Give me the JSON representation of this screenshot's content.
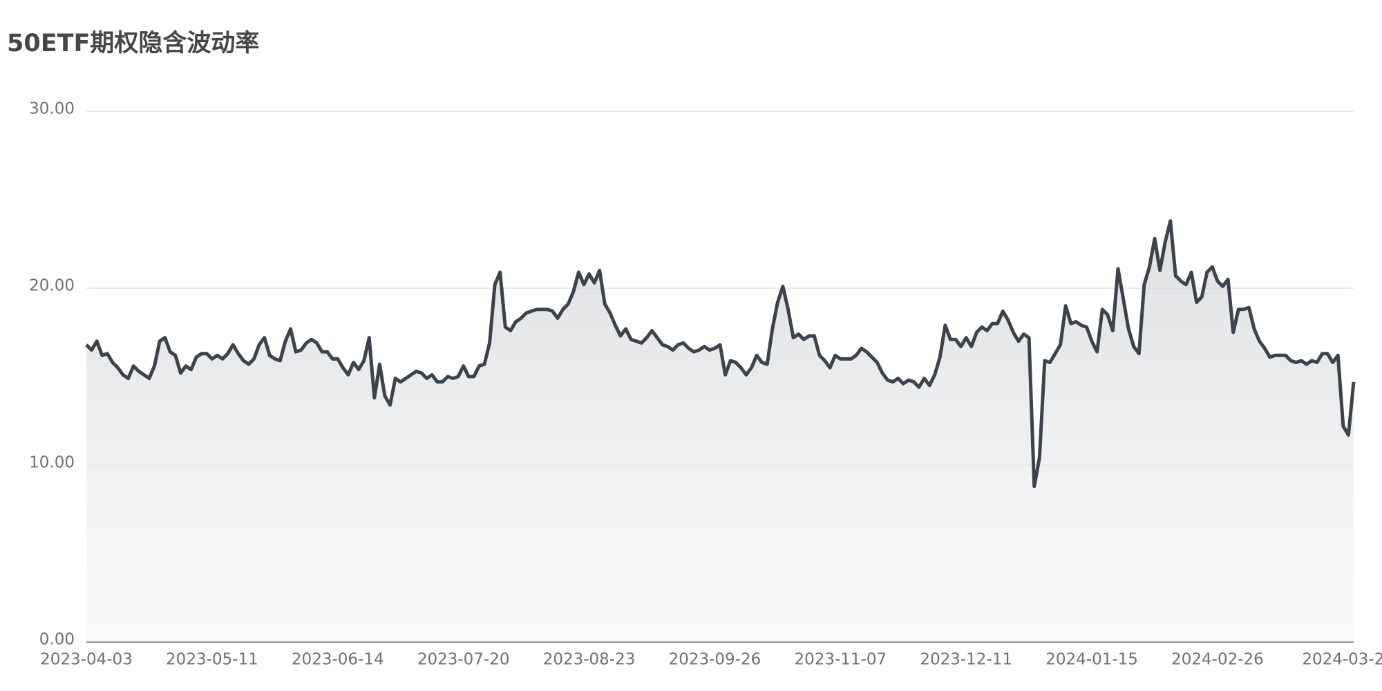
{
  "chart_data": {
    "type": "area",
    "title": "50ETF期权隐含波动率",
    "categories": [
      "2023-04-03",
      null,
      null,
      null,
      null,
      null,
      null,
      null,
      null,
      null,
      null,
      null,
      null,
      null,
      null,
      null,
      null,
      null,
      null,
      null,
      null,
      null,
      null,
      null,
      "2023-05-11",
      null,
      null,
      null,
      null,
      null,
      null,
      null,
      null,
      null,
      null,
      null,
      null,
      null,
      null,
      null,
      null,
      null,
      null,
      null,
      null,
      null,
      null,
      null,
      "2023-06-14",
      null,
      null,
      null,
      null,
      null,
      null,
      null,
      null,
      null,
      null,
      null,
      null,
      null,
      null,
      null,
      null,
      null,
      null,
      null,
      null,
      null,
      null,
      null,
      "2023-07-20",
      null,
      null,
      null,
      null,
      null,
      null,
      null,
      null,
      null,
      null,
      null,
      null,
      null,
      null,
      null,
      null,
      null,
      null,
      null,
      null,
      null,
      null,
      null,
      "2023-08-23",
      null,
      null,
      null,
      null,
      null,
      null,
      null,
      null,
      null,
      null,
      null,
      null,
      null,
      null,
      null,
      null,
      null,
      null,
      null,
      null,
      null,
      null,
      null,
      "2023-09-26",
      null,
      null,
      null,
      null,
      null,
      null,
      null,
      null,
      null,
      null,
      null,
      null,
      null,
      null,
      null,
      null,
      null,
      null,
      null,
      null,
      null,
      null,
      null,
      "2023-11-07",
      null,
      null,
      null,
      null,
      null,
      null,
      null,
      null,
      null,
      null,
      null,
      null,
      null,
      null,
      null,
      null,
      null,
      null,
      null,
      null,
      null,
      null,
      null,
      "2023-12-11",
      null,
      null,
      null,
      null,
      null,
      null,
      null,
      null,
      null,
      null,
      null,
      null,
      null,
      null,
      null,
      null,
      null,
      null,
      null,
      null,
      null,
      null,
      null,
      "2024-01-15",
      null,
      null,
      null,
      null,
      null,
      null,
      null,
      null,
      null,
      null,
      null,
      null,
      null,
      null,
      null,
      null,
      null,
      null,
      null,
      null,
      null,
      null,
      null,
      "2024-02-26",
      null,
      null,
      null,
      null,
      null,
      null,
      null,
      null,
      null,
      null,
      null,
      null,
      null,
      null,
      null,
      null,
      null,
      null,
      null,
      null,
      null,
      null,
      null,
      "2024-03-2",
      null,
      null
    ],
    "values": [
      16.8,
      16.5,
      17.0,
      16.2,
      16.3,
      15.8,
      15.5,
      15.1,
      14.9,
      15.6,
      15.3,
      15.1,
      14.9,
      15.6,
      17.0,
      17.2,
      16.4,
      16.2,
      15.2,
      15.6,
      15.4,
      16.1,
      16.3,
      16.3,
      16.0,
      16.2,
      16.0,
      16.3,
      16.8,
      16.3,
      15.9,
      15.7,
      16.0,
      16.8,
      17.2,
      16.2,
      16.0,
      15.9,
      17.0,
      17.7,
      16.4,
      16.5,
      16.9,
      17.1,
      16.9,
      16.4,
      16.4,
      16.0,
      16.0,
      15.5,
      15.1,
      15.8,
      15.4,
      15.9,
      17.2,
      13.8,
      15.7,
      13.9,
      13.4,
      14.9,
      14.7,
      14.9,
      15.1,
      15.3,
      15.2,
      14.9,
      15.1,
      14.7,
      14.7,
      15.0,
      14.9,
      15.0,
      15.6,
      15.0,
      15.0,
      15.6,
      15.7,
      16.9,
      20.2,
      20.9,
      17.8,
      17.6,
      18.1,
      18.3,
      18.6,
      18.7,
      18.8,
      18.8,
      18.8,
      18.7,
      18.3,
      18.8,
      19.1,
      19.8,
      20.9,
      20.2,
      20.8,
      20.3,
      21.0,
      19.1,
      18.6,
      17.9,
      17.3,
      17.7,
      17.1,
      17.0,
      16.9,
      17.2,
      17.6,
      17.2,
      16.8,
      16.7,
      16.5,
      16.8,
      16.9,
      16.6,
      16.4,
      16.5,
      16.7,
      16.5,
      16.6,
      16.8,
      15.1,
      15.9,
      15.8,
      15.5,
      15.1,
      15.5,
      16.2,
      15.8,
      15.7,
      17.7,
      19.2,
      20.1,
      18.8,
      17.2,
      17.4,
      17.1,
      17.3,
      17.3,
      16.2,
      15.9,
      15.5,
      16.2,
      16.0,
      16.0,
      16.0,
      16.2,
      16.6,
      16.4,
      16.1,
      15.8,
      15.2,
      14.8,
      14.7,
      14.9,
      14.6,
      14.8,
      14.7,
      14.4,
      14.9,
      14.5,
      15.1,
      16.1,
      17.9,
      17.1,
      17.1,
      16.7,
      17.2,
      16.7,
      17.5,
      17.8,
      17.6,
      18.0,
      18.0,
      18.7,
      18.2,
      17.5,
      17.0,
      17.4,
      17.2,
      8.8,
      10.4,
      15.9,
      15.8,
      16.3,
      16.8,
      19.0,
      18.0,
      18.1,
      17.9,
      17.8,
      17.0,
      16.4,
      18.8,
      18.5,
      17.6,
      21.1,
      19.4,
      17.7,
      16.7,
      16.3,
      20.2,
      21.2,
      22.8,
      21.0,
      22.6,
      23.8,
      20.7,
      20.4,
      20.2,
      20.9,
      19.2,
      19.5,
      20.9,
      21.2,
      20.4,
      20.1,
      20.5,
      17.5,
      18.8,
      18.8,
      18.9,
      17.7,
      17.0,
      16.6,
      16.1,
      16.2,
      16.2,
      16.2,
      15.9,
      15.8,
      15.9,
      15.7,
      15.9,
      15.8,
      16.3,
      16.3,
      15.8,
      16.2,
      12.2,
      11.7,
      14.7
    ],
    "color": "#3d434b",
    "ylim": [
      0,
      30
    ],
    "yticks": [
      {
        "value": 0,
        "label": "0.00"
      },
      {
        "value": 10,
        "label": "10.00"
      },
      {
        "value": 20,
        "label": "20.00"
      },
      {
        "value": 30,
        "label": "30.00"
      }
    ],
    "grid": true
  }
}
